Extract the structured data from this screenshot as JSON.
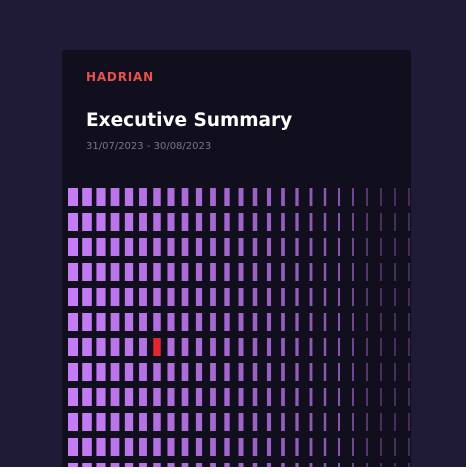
{
  "header": {
    "logo": "HADRIAN",
    "title": "Executive Summary",
    "date_range": "31/07/2023 - 30/08/2023"
  }
}
